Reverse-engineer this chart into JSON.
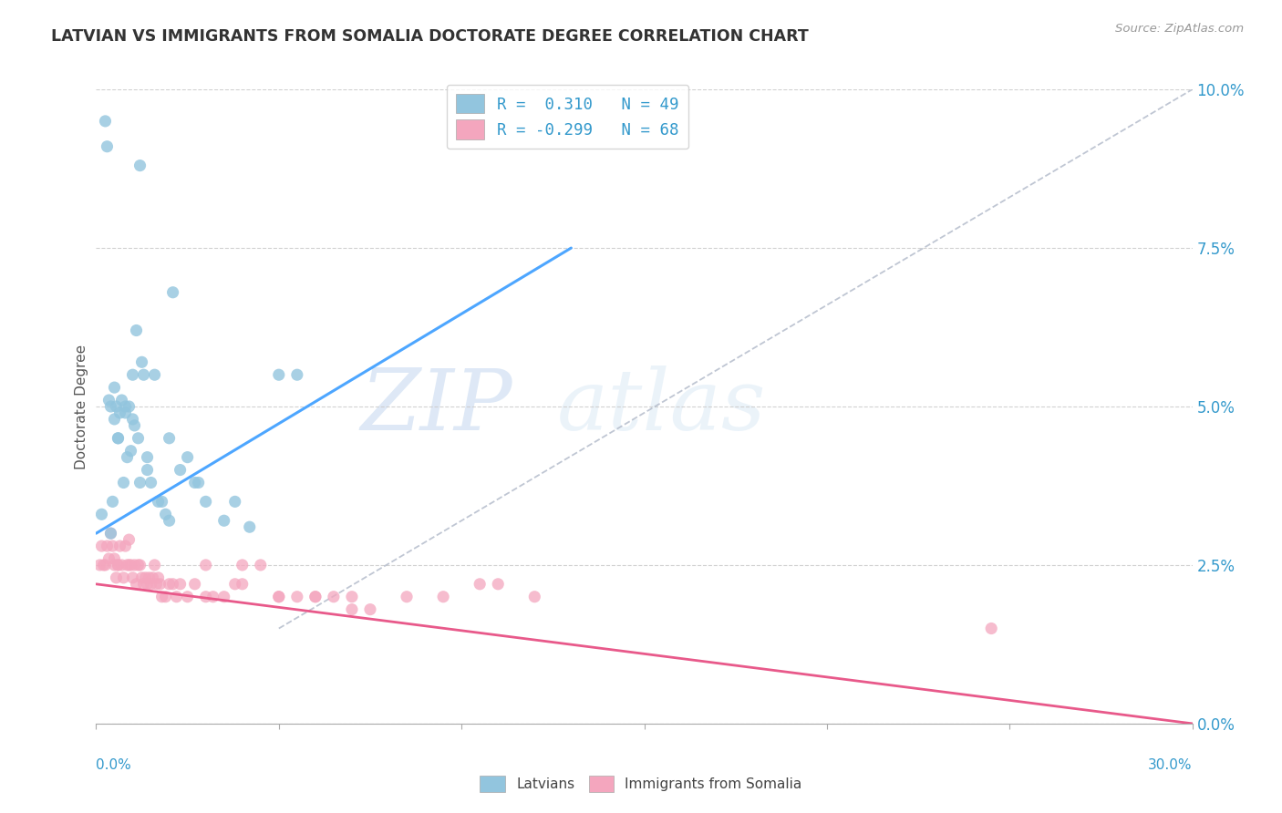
{
  "title": "LATVIAN VS IMMIGRANTS FROM SOMALIA DOCTORATE DEGREE CORRELATION CHART",
  "source": "Source: ZipAtlas.com",
  "ylabel": "Doctorate Degree",
  "xmin": 0.0,
  "xmax": 30.0,
  "ymin": 0.0,
  "ymax": 10.0,
  "yticks": [
    0.0,
    2.5,
    5.0,
    7.5,
    10.0
  ],
  "ytick_labels": [
    "0.0%",
    "2.5%",
    "5.0%",
    "7.5%",
    "10.0%"
  ],
  "latvian_color": "#92c5de",
  "somalia_color": "#f4a6be",
  "latvian_line_color": "#4da6ff",
  "somalia_line_color": "#e8598a",
  "watermark_zip": "ZIP",
  "watermark_atlas": "atlas",
  "legend_label1": "R =  0.310   N = 49",
  "legend_label2": "R = -0.299   N = 68",
  "bottom_label1": "Latvians",
  "bottom_label2": "Immigrants from Somalia",
  "latvian_x": [
    0.15,
    0.25,
    0.3,
    0.35,
    0.4,
    0.45,
    0.5,
    0.5,
    0.55,
    0.6,
    0.65,
    0.7,
    0.75,
    0.8,
    0.85,
    0.9,
    0.95,
    1.0,
    1.05,
    1.1,
    1.15,
    1.2,
    1.25,
    1.3,
    1.4,
    1.5,
    1.6,
    1.7,
    1.8,
    1.9,
    2.0,
    2.1,
    2.3,
    2.5,
    2.7,
    3.0,
    3.5,
    4.2,
    5.0,
    0.4,
    0.6,
    0.8,
    1.0,
    1.2,
    1.4,
    2.0,
    2.8,
    3.8,
    5.5
  ],
  "latvian_y": [
    3.3,
    9.5,
    9.1,
    5.1,
    5.0,
    3.5,
    4.8,
    5.3,
    5.0,
    4.5,
    4.9,
    5.1,
    3.8,
    4.9,
    4.2,
    5.0,
    4.3,
    5.5,
    4.7,
    6.2,
    4.5,
    8.8,
    5.7,
    5.5,
    4.0,
    3.8,
    5.5,
    3.5,
    3.5,
    3.3,
    4.5,
    6.8,
    4.0,
    4.2,
    3.8,
    3.5,
    3.2,
    3.1,
    5.5,
    3.0,
    4.5,
    5.0,
    4.8,
    3.8,
    4.2,
    3.2,
    3.8,
    3.5,
    5.5
  ],
  "somalia_x": [
    0.1,
    0.15,
    0.2,
    0.25,
    0.3,
    0.35,
    0.4,
    0.45,
    0.5,
    0.5,
    0.55,
    0.6,
    0.65,
    0.7,
    0.75,
    0.8,
    0.85,
    0.9,
    0.95,
    1.0,
    1.05,
    1.1,
    1.15,
    1.2,
    1.25,
    1.3,
    1.35,
    1.4,
    1.45,
    1.5,
    1.55,
    1.6,
    1.65,
    1.7,
    1.75,
    1.8,
    1.9,
    2.0,
    2.1,
    2.2,
    2.3,
    2.5,
    2.7,
    3.0,
    3.2,
    3.5,
    3.8,
    4.0,
    4.5,
    5.0,
    5.5,
    6.0,
    6.5,
    7.0,
    7.5,
    8.5,
    9.5,
    10.5,
    11.0,
    12.0,
    3.0,
    4.0,
    5.0,
    6.0,
    7.0,
    24.5,
    0.6,
    0.9
  ],
  "somalia_y": [
    2.5,
    2.8,
    2.5,
    2.5,
    2.8,
    2.6,
    3.0,
    2.8,
    2.6,
    2.5,
    2.3,
    2.5,
    2.8,
    2.5,
    2.3,
    2.8,
    2.5,
    2.9,
    2.5,
    2.3,
    2.5,
    2.2,
    2.5,
    2.5,
    2.3,
    2.2,
    2.3,
    2.2,
    2.3,
    2.2,
    2.3,
    2.5,
    2.2,
    2.3,
    2.2,
    2.0,
    2.0,
    2.2,
    2.2,
    2.0,
    2.2,
    2.0,
    2.2,
    2.0,
    2.0,
    2.0,
    2.2,
    2.2,
    2.5,
    2.0,
    2.0,
    2.0,
    2.0,
    1.8,
    1.8,
    2.0,
    2.0,
    2.2,
    2.2,
    2.0,
    2.5,
    2.5,
    2.0,
    2.0,
    2.0,
    1.5,
    2.5,
    2.5
  ],
  "lat_line_x0": 0.0,
  "lat_line_y0": 3.0,
  "lat_line_x1": 13.0,
  "lat_line_y1": 7.5,
  "som_line_x0": 0.0,
  "som_line_y0": 2.2,
  "som_line_x1": 30.0,
  "som_line_y1": 0.0,
  "dash_x0": 5.0,
  "dash_y0": 1.5,
  "dash_x1": 30.0,
  "dash_y1": 10.0
}
